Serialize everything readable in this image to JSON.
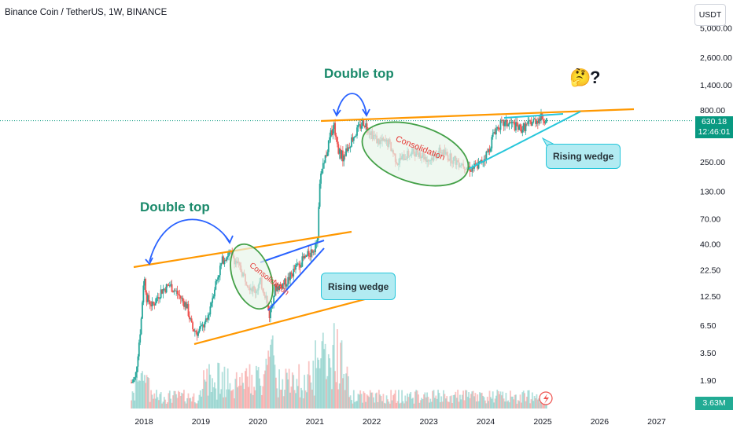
{
  "header": {
    "title": "Binance Coin / TetherUS, 1W, BINANCE",
    "currency_button": "USDT"
  },
  "price_badge": {
    "price": "630.18",
    "countdown": "12:46:01"
  },
  "volume_badge": "3.63M",
  "annotations": {
    "double_top_upper": "Double top",
    "double_top_lower": "Double top",
    "rising_wedge_upper": "Rising wedge",
    "rising_wedge_lower": "Rising wedge",
    "consolidation_upper": "Consolidation",
    "consolidation_lower": "Consolidation",
    "thinking_emoji": "🤔",
    "question_mark": "?"
  },
  "colors": {
    "up_candle": "#26a69a",
    "down_candle": "#ef5350",
    "trendline_orange": "#ff9800",
    "wedge_blue": "#2962ff",
    "wedge_cyan": "#26c6da",
    "consolidation_fill": "#e8f5e9",
    "consolidation_stroke": "#43a047",
    "double_top_arc": "#2962ff",
    "price_line": "#089981"
  },
  "chart_data": {
    "type": "candlestick",
    "title": "Binance Coin / TetherUS, 1W, BINANCE",
    "x_axis": {
      "labels": [
        "2018",
        "2019",
        "2020",
        "2021",
        "2022",
        "2023",
        "2024",
        "2025",
        "2026",
        "2027"
      ],
      "range": [
        2017.8,
        2027.4
      ]
    },
    "y_axis": {
      "scale": "log",
      "labels": [
        "5,000.00",
        "2,600.00",
        "1,400.00",
        "800.00",
        "250.00",
        "130.00",
        "70.00",
        "40.00",
        "22.50",
        "12.50",
        "6.50",
        "3.50",
        "1.90"
      ],
      "values": [
        5000,
        2600,
        1400,
        800,
        250,
        130,
        70,
        40,
        22.5,
        12.5,
        6.5,
        3.5,
        1.9
      ]
    },
    "current_price": 630.18,
    "current_volume": "3.63M",
    "price_path": [
      {
        "t": 2017.78,
        "p": 1.8
      },
      {
        "t": 2017.85,
        "p": 2.0
      },
      {
        "t": 2017.95,
        "p": 7
      },
      {
        "t": 2018.0,
        "p": 20
      },
      {
        "t": 2018.05,
        "p": 12
      },
      {
        "t": 2018.15,
        "p": 10
      },
      {
        "t": 2018.3,
        "p": 14
      },
      {
        "t": 2018.45,
        "p": 16
      },
      {
        "t": 2018.6,
        "p": 13
      },
      {
        "t": 2018.75,
        "p": 10
      },
      {
        "t": 2018.85,
        "p": 6
      },
      {
        "t": 2018.95,
        "p": 5.5
      },
      {
        "t": 2019.1,
        "p": 7
      },
      {
        "t": 2019.25,
        "p": 16
      },
      {
        "t": 2019.38,
        "p": 28
      },
      {
        "t": 2019.5,
        "p": 33
      },
      {
        "t": 2019.6,
        "p": 28
      },
      {
        "t": 2019.75,
        "p": 20
      },
      {
        "t": 2019.85,
        "p": 16
      },
      {
        "t": 2019.95,
        "p": 14
      },
      {
        "t": 2020.05,
        "p": 17
      },
      {
        "t": 2020.15,
        "p": 12
      },
      {
        "t": 2020.2,
        "p": 8
      },
      {
        "t": 2020.3,
        "p": 15
      },
      {
        "t": 2020.5,
        "p": 17
      },
      {
        "t": 2020.7,
        "p": 25
      },
      {
        "t": 2020.9,
        "p": 32
      },
      {
        "t": 2021.0,
        "p": 38
      },
      {
        "t": 2021.05,
        "p": 50
      },
      {
        "t": 2021.1,
        "p": 200
      },
      {
        "t": 2021.2,
        "p": 300
      },
      {
        "t": 2021.33,
        "p": 600
      },
      {
        "t": 2021.42,
        "p": 320
      },
      {
        "t": 2021.5,
        "p": 280
      },
      {
        "t": 2021.65,
        "p": 420
      },
      {
        "t": 2021.85,
        "p": 620
      },
      {
        "t": 2021.95,
        "p": 520
      },
      {
        "t": 2022.1,
        "p": 400
      },
      {
        "t": 2022.3,
        "p": 380
      },
      {
        "t": 2022.45,
        "p": 250
      },
      {
        "t": 2022.6,
        "p": 290
      },
      {
        "t": 2022.8,
        "p": 320
      },
      {
        "t": 2023.0,
        "p": 260
      },
      {
        "t": 2023.2,
        "p": 320
      },
      {
        "t": 2023.45,
        "p": 260
      },
      {
        "t": 2023.6,
        "p": 240
      },
      {
        "t": 2023.75,
        "p": 215
      },
      {
        "t": 2023.9,
        "p": 240
      },
      {
        "t": 2024.05,
        "p": 320
      },
      {
        "t": 2024.15,
        "p": 500
      },
      {
        "t": 2024.25,
        "p": 580
      },
      {
        "t": 2024.45,
        "p": 590
      },
      {
        "t": 2024.6,
        "p": 520
      },
      {
        "t": 2024.75,
        "p": 580
      },
      {
        "t": 2024.9,
        "p": 650
      },
      {
        "t": 2025.0,
        "p": 680
      },
      {
        "t": 2025.08,
        "p": 630
      }
    ]
  }
}
